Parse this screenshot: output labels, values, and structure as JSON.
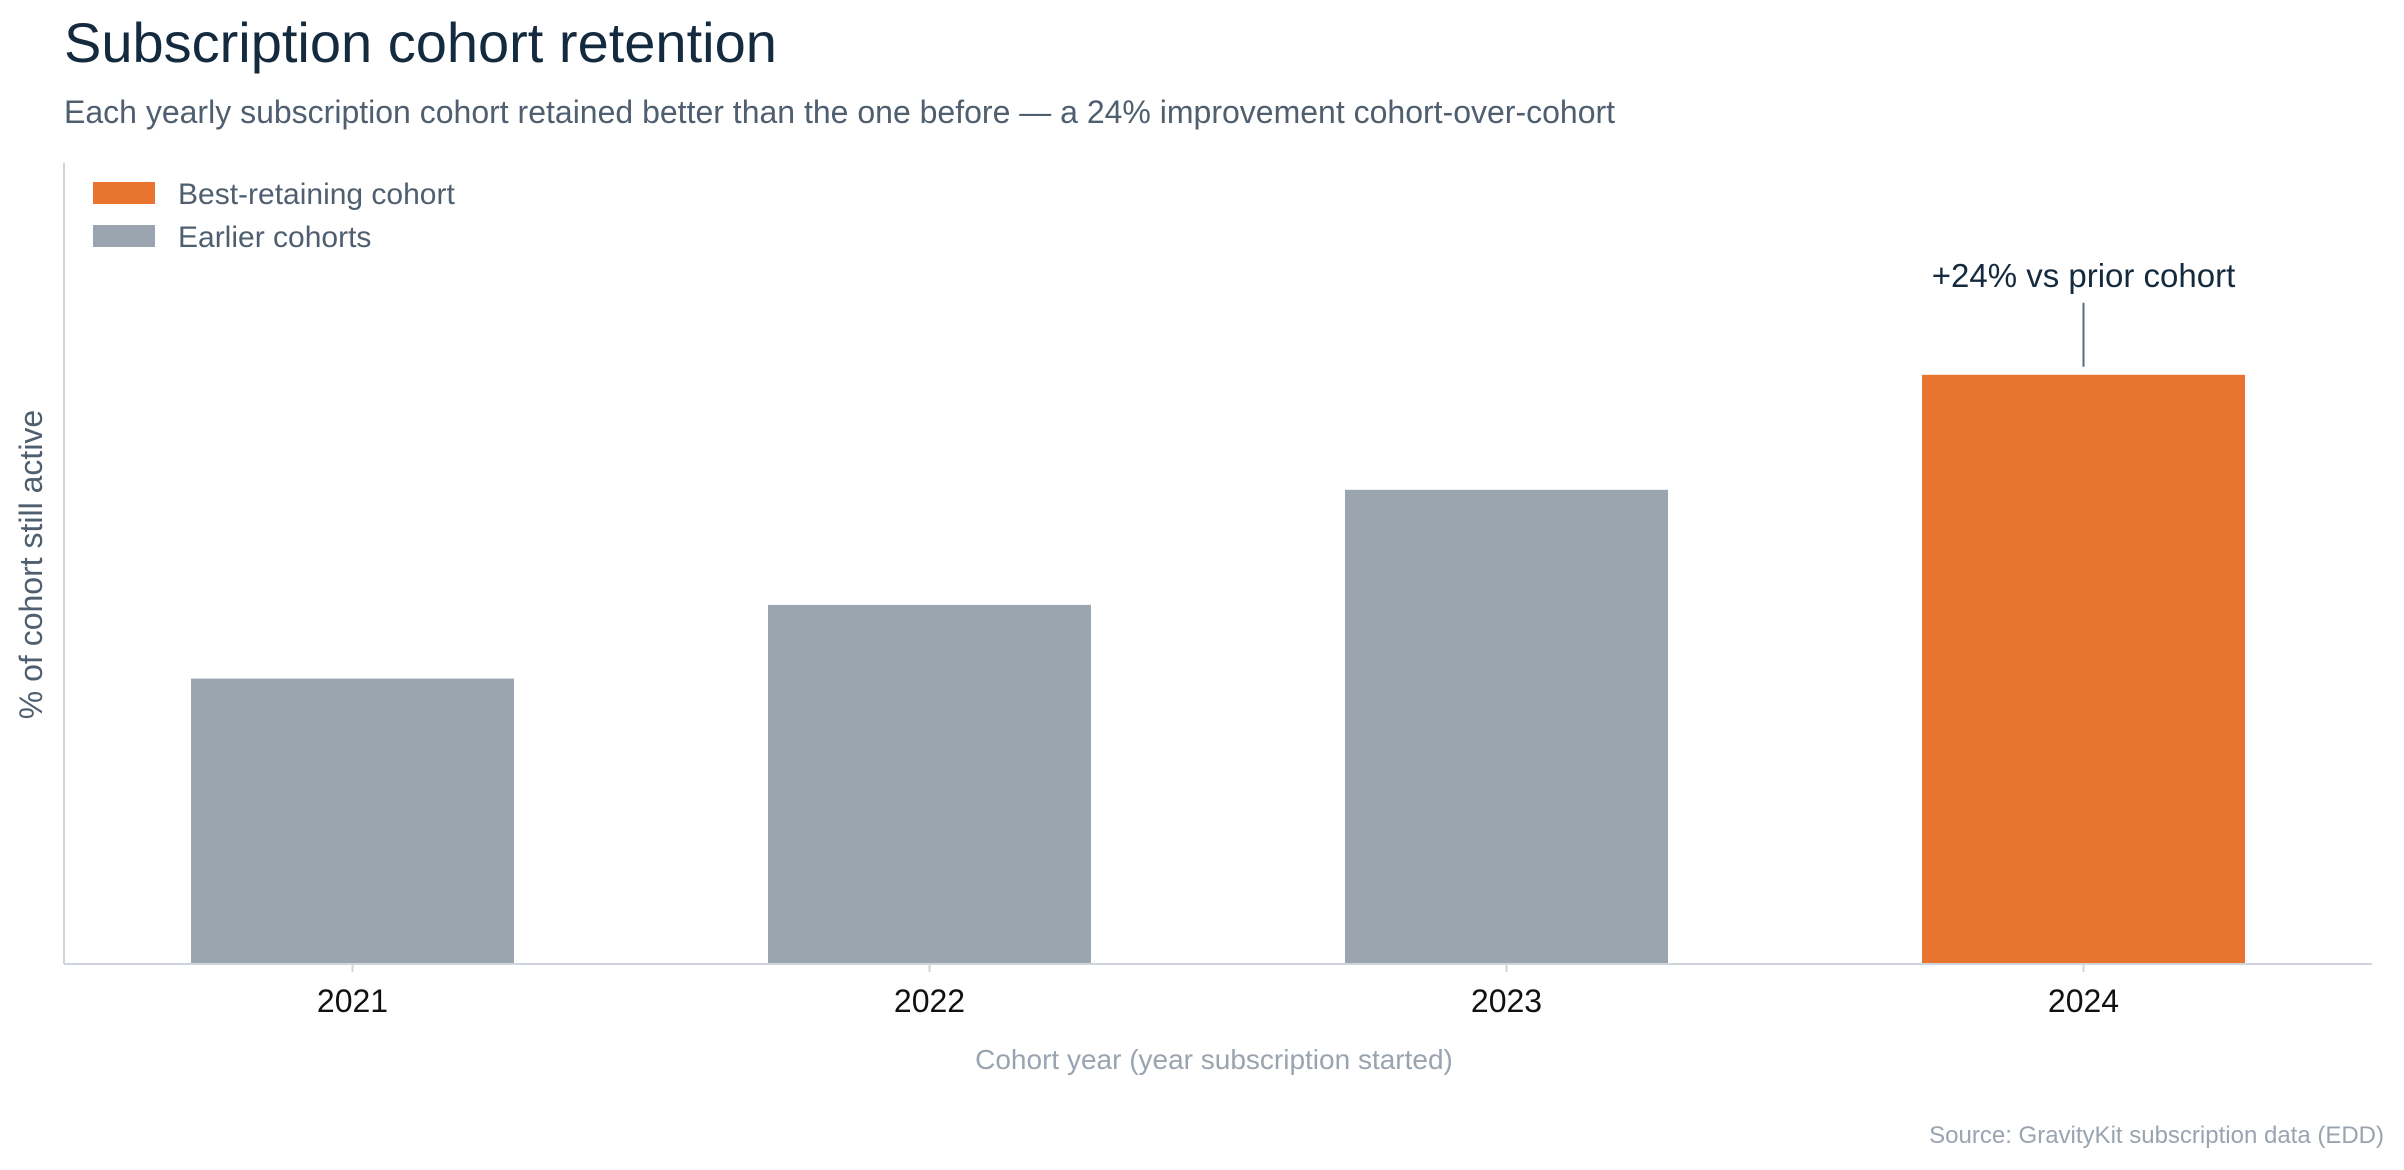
{
  "header": {
    "title": "Subscription cohort retention",
    "subtitle": "Each yearly subscription cohort retained better than the one before — a 24% improvement cohort-over-cohort"
  },
  "footer": {
    "source": "Source: GravityKit subscription data (EDD)"
  },
  "colors": {
    "highlight": "#e8742f",
    "muted": "#9ba5b0",
    "axis": "#cfd4da",
    "annotation_line": "#5b6b7c",
    "title": "#142a3e"
  },
  "chart_data": {
    "type": "bar",
    "title": "Subscription cohort retention",
    "xlabel": "Cohort year (year subscription started)",
    "ylabel": "% of cohort still active",
    "categories": [
      "2021",
      "2022",
      "2023",
      "2024"
    ],
    "values": [
      31,
      39,
      51.5,
      64
    ],
    "ylim": [
      0,
      87
    ],
    "highlight_index": 3,
    "legend": {
      "placement": "top-left",
      "items": [
        {
          "label": "Best-retaining cohort",
          "color": "#e8742f"
        },
        {
          "label": "Earlier cohorts",
          "color": "#9ba5b0"
        }
      ]
    },
    "annotation": {
      "text": "+24% vs prior cohort",
      "category": "2024"
    },
    "y_ticks_shown": false,
    "grid": false
  }
}
